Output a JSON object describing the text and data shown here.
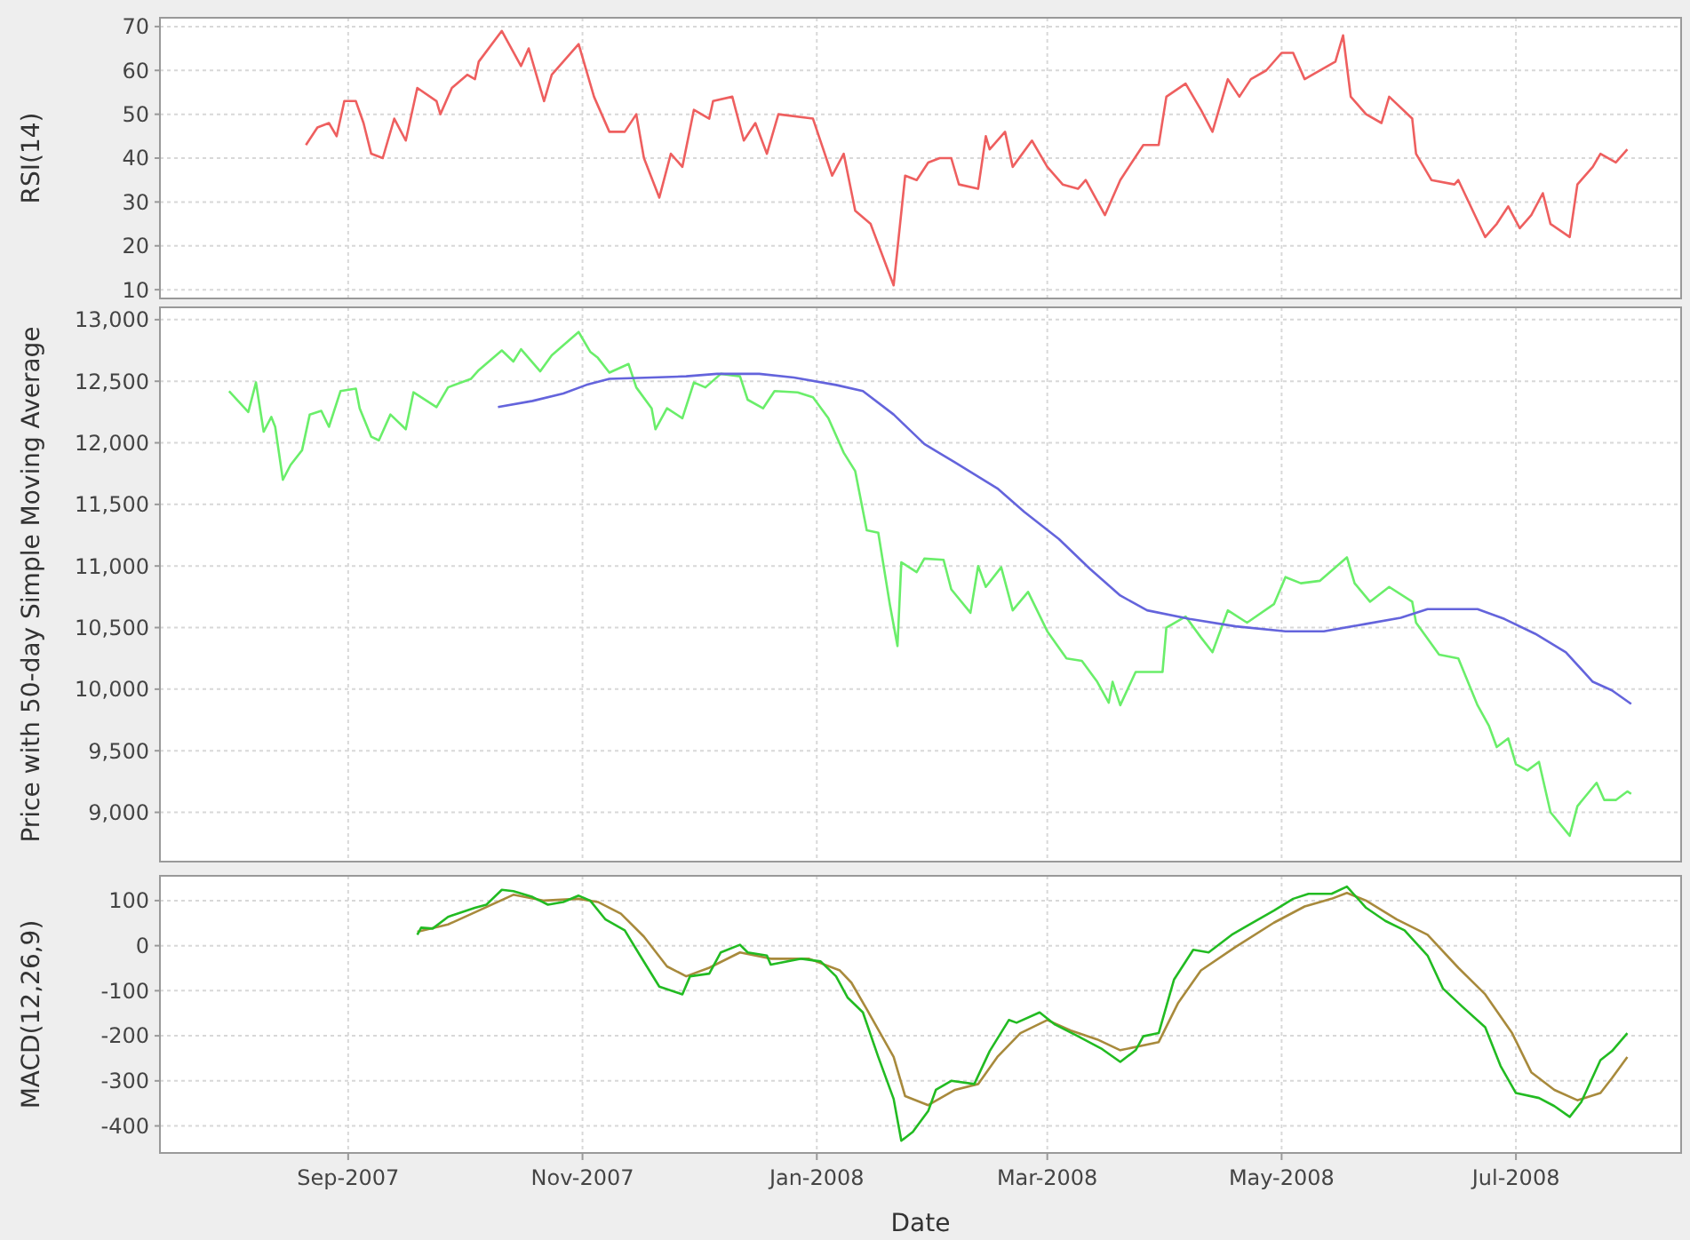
{
  "chart_data": [
    {
      "type": "line",
      "ylabel": "RSI(14)",
      "xlim": [
        "2007-07-14",
        "2008-08-13"
      ],
      "ylim": [
        8,
        72
      ],
      "yticks": [
        10,
        20,
        30,
        40,
        50,
        60,
        70
      ],
      "xticks": [
        {
          "value": "2007-09-01",
          "label": null
        },
        {
          "value": "2007-11-01",
          "label": null
        },
        {
          "value": "2008-01-01",
          "label": null
        },
        {
          "value": "2008-03-01",
          "label": null
        },
        {
          "value": "2008-05-01",
          "label": null
        },
        {
          "value": "2008-07-01",
          "label": null
        }
      ],
      "tick_labels": "y",
      "grid": true,
      "series": [
        {
          "color": "#ee5f5f",
          "x": [
            "2007-08-21",
            "2007-08-24",
            "2007-08-27",
            "2007-08-29",
            "2007-08-31",
            "2007-09-03",
            "2007-09-05",
            "2007-09-07",
            "2007-09-10",
            "2007-09-13",
            "2007-09-16",
            "2007-09-19",
            "2007-09-24",
            "2007-09-25",
            "2007-09-28",
            "2007-10-02",
            "2007-10-04",
            "2007-10-05",
            "2007-10-11",
            "2007-10-16",
            "2007-10-18",
            "2007-10-22",
            "2007-10-24",
            "2007-10-31",
            "2007-11-04",
            "2007-11-08",
            "2007-11-12",
            "2007-11-15",
            "2007-11-17",
            "2007-11-21",
            "2007-11-24",
            "2007-11-27",
            "2007-11-30",
            "2007-12-04",
            "2007-12-05",
            "2007-12-10",
            "2007-12-13",
            "2007-12-16",
            "2007-12-19",
            "2007-12-22",
            "2007-12-31",
            "2008-01-05",
            "2008-01-08",
            "2008-01-11",
            "2008-01-15",
            "2008-01-21",
            "2008-01-24",
            "2008-01-27",
            "2008-01-30",
            "2008-02-02",
            "2008-02-05",
            "2008-02-07",
            "2008-02-12",
            "2008-02-14",
            "2008-02-15",
            "2008-02-19",
            "2008-02-21",
            "2008-02-26",
            "2008-03-01",
            "2008-03-05",
            "2008-03-09",
            "2008-03-11",
            "2008-03-16",
            "2008-03-20",
            "2008-03-26",
            "2008-03-30",
            "2008-04-01",
            "2008-04-06",
            "2008-04-10",
            "2008-04-13",
            "2008-04-17",
            "2008-04-20",
            "2008-04-23",
            "2008-04-27",
            "2008-05-01",
            "2008-05-04",
            "2008-05-07",
            "2008-05-15",
            "2008-05-17",
            "2008-05-19",
            "2008-05-23",
            "2008-05-27",
            "2008-05-29",
            "2008-06-04",
            "2008-06-05",
            "2008-06-09",
            "2008-06-15",
            "2008-06-16",
            "2008-06-23",
            "2008-06-26",
            "2008-06-29",
            "2008-07-02",
            "2008-07-05",
            "2008-07-08",
            "2008-07-10",
            "2008-07-15",
            "2008-07-17",
            "2008-07-21",
            "2008-07-23",
            "2008-07-27",
            "2008-07-30"
          ],
          "values": [
            43,
            47,
            48,
            45,
            53,
            53,
            48,
            41,
            40,
            49,
            44,
            56,
            53,
            50,
            56,
            59,
            58,
            62,
            69,
            61,
            65,
            53,
            59,
            66,
            54,
            46,
            46,
            50,
            40,
            31,
            41,
            38,
            51,
            49,
            53,
            54,
            44,
            48,
            41,
            50,
            49,
            36,
            41,
            28,
            25,
            11,
            36,
            35,
            39,
            40,
            40,
            34,
            33,
            45,
            42,
            46,
            38,
            44,
            38,
            34,
            33,
            35,
            27,
            35,
            43,
            43,
            54,
            57,
            51,
            46,
            58,
            54,
            58,
            60,
            64,
            64,
            58,
            62,
            68,
            54,
            50,
            48,
            54,
            49,
            41,
            35,
            34,
            35,
            22,
            25,
            29,
            24,
            27,
            32,
            25,
            22,
            34,
            38,
            41,
            39,
            42
          ]
        }
      ]
    },
    {
      "type": "line",
      "ylabel": "Price with 50-day Simple Moving Average",
      "xlim": [
        "2007-07-14",
        "2008-08-13"
      ],
      "ylim": [
        8600,
        13100
      ],
      "yticks": [
        {
          "value": 9000,
          "label": "9,000"
        },
        {
          "value": 9500,
          "label": "9,500"
        },
        {
          "value": 10000,
          "label": "10,000"
        },
        {
          "value": 10500,
          "label": "10,500"
        },
        {
          "value": 11000,
          "label": "11,000"
        },
        {
          "value": 11500,
          "label": "11,500"
        },
        {
          "value": 12000,
          "label": "12,000"
        },
        {
          "value": 12500,
          "label": "12,500"
        },
        {
          "value": 13000,
          "label": "13,000"
        }
      ],
      "xticks": [
        {
          "value": "2007-09-01",
          "label": null
        },
        {
          "value": "2007-11-01",
          "label": null
        },
        {
          "value": "2008-01-01",
          "label": null
        },
        {
          "value": "2008-03-01",
          "label": null
        },
        {
          "value": "2008-05-01",
          "label": null
        },
        {
          "value": "2008-07-01",
          "label": null
        }
      ],
      "tick_labels": "y",
      "grid": true,
      "series": [
        {
          "color": "#6aee6a",
          "x": [
            "2007-08-01",
            "2007-08-06",
            "2007-08-08",
            "2007-08-10",
            "2007-08-12",
            "2007-08-13",
            "2007-08-15",
            "2007-08-17",
            "2007-08-20",
            "2007-08-22",
            "2007-08-25",
            "2007-08-27",
            "2007-08-30",
            "2007-09-03",
            "2007-09-04",
            "2007-09-07",
            "2007-09-09",
            "2007-09-12",
            "2007-09-16",
            "2007-09-18",
            "2007-09-24",
            "2007-09-27",
            "2007-10-03",
            "2007-10-05",
            "2007-10-11",
            "2007-10-14",
            "2007-10-16",
            "2007-10-21",
            "2007-10-24",
            "2007-10-31",
            "2007-11-03",
            "2007-11-05",
            "2007-11-08",
            "2007-11-13",
            "2007-11-15",
            "2007-11-19",
            "2007-11-20",
            "2007-11-23",
            "2007-11-27",
            "2007-11-30",
            "2007-12-03",
            "2007-12-07",
            "2007-12-12",
            "2007-12-14",
            "2007-12-18",
            "2007-12-21",
            "2007-12-27",
            "2007-12-31",
            "2008-01-04",
            "2008-01-08",
            "2008-01-11",
            "2008-01-14",
            "2008-01-17",
            "2008-01-20",
            "2008-01-22",
            "2008-01-23",
            "2008-01-27",
            "2008-01-29",
            "2008-02-03",
            "2008-02-05",
            "2008-02-10",
            "2008-02-12",
            "2008-02-14",
            "2008-02-18",
            "2008-02-21",
            "2008-02-25",
            "2008-03-01",
            "2008-03-06",
            "2008-03-10",
            "2008-03-14",
            "2008-03-17",
            "2008-03-18",
            "2008-03-20",
            "2008-03-24",
            "2008-03-31",
            "2008-04-01",
            "2008-04-06",
            "2008-04-10",
            "2008-04-13",
            "2008-04-17",
            "2008-04-22",
            "2008-04-29",
            "2008-05-02",
            "2008-05-06",
            "2008-05-11",
            "2008-05-18",
            "2008-05-20",
            "2008-05-24",
            "2008-05-29",
            "2008-06-04",
            "2008-06-05",
            "2008-06-11",
            "2008-06-16",
            "2008-06-21",
            "2008-06-24",
            "2008-06-26",
            "2008-06-29",
            "2008-07-01",
            "2008-07-04",
            "2008-07-07",
            "2008-07-10",
            "2008-07-15",
            "2008-07-17",
            "2008-07-22",
            "2008-07-24",
            "2008-07-27",
            "2008-07-30",
            "2008-07-31"
          ],
          "values": [
            12420,
            12250,
            12490,
            12090,
            12210,
            12130,
            11700,
            11820,
            11940,
            12230,
            12260,
            12130,
            12420,
            12440,
            12280,
            12050,
            12020,
            12230,
            12110,
            12410,
            12290,
            12450,
            12520,
            12590,
            12750,
            12660,
            12760,
            12580,
            12710,
            12900,
            12740,
            12690,
            12570,
            12640,
            12450,
            12280,
            12110,
            12280,
            12200,
            12490,
            12450,
            12560,
            12540,
            12350,
            12280,
            12420,
            12410,
            12370,
            12200,
            11920,
            11770,
            11290,
            11270,
            10690,
            10350,
            11030,
            10950,
            11060,
            11050,
            10810,
            10620,
            11000,
            10830,
            10990,
            10640,
            10790,
            10470,
            10250,
            10230,
            10060,
            9890,
            10060,
            9870,
            10140,
            10140,
            10500,
            10590,
            10420,
            10300,
            10640,
            10540,
            10690,
            10910,
            10860,
            10880,
            11070,
            10860,
            10710,
            10830,
            10710,
            10540,
            10280,
            10250,
            9870,
            9700,
            9530,
            9600,
            9390,
            9340,
            9410,
            9000,
            8810,
            9050,
            9240,
            9100,
            9100,
            9170,
            9150
          ]
        },
        {
          "color": "#6464dc",
          "x": [
            "2007-10-10",
            "2007-10-19",
            "2007-10-27",
            "2007-11-02",
            "2007-11-08",
            "2007-11-19",
            "2007-11-28",
            "2007-12-06",
            "2007-12-17",
            "2007-12-26",
            "2008-01-06",
            "2008-01-13",
            "2008-01-21",
            "2008-01-29",
            "2008-02-06",
            "2008-02-17",
            "2008-02-24",
            "2008-03-04",
            "2008-03-12",
            "2008-03-20",
            "2008-03-27",
            "2008-04-07",
            "2008-04-19",
            "2008-05-02",
            "2008-05-12",
            "2008-05-23",
            "2008-06-01",
            "2008-06-08",
            "2008-06-21",
            "2008-06-28",
            "2008-07-06",
            "2008-07-14",
            "2008-07-21",
            "2008-07-26",
            "2008-07-31"
          ],
          "values": [
            12290,
            12340,
            12400,
            12470,
            12520,
            12530,
            12540,
            12560,
            12560,
            12530,
            12470,
            12420,
            12230,
            11990,
            11840,
            11630,
            11440,
            11220,
            10980,
            10760,
            10640,
            10570,
            10510,
            10470,
            10470,
            10530,
            10580,
            10650,
            10650,
            10570,
            10450,
            10300,
            10060,
            9990,
            9880
          ]
        }
      ]
    },
    {
      "type": "line",
      "ylabel": "MACD(12,26,9)",
      "xlabel": "Date",
      "xlim": [
        "2007-07-14",
        "2008-08-13"
      ],
      "ylim": [
        -460,
        155
      ],
      "yticks": [
        -400,
        -300,
        -200,
        -100,
        0,
        100
      ],
      "xticks": [
        {
          "value": "2007-09-01",
          "label": "Sep-2007"
        },
        {
          "value": "2007-11-01",
          "label": "Nov-2007"
        },
        {
          "value": "2008-01-01",
          "label": "Jan-2008"
        },
        {
          "value": "2008-03-01",
          "label": "Mar-2008"
        },
        {
          "value": "2008-05-01",
          "label": "May-2008"
        },
        {
          "value": "2008-07-01",
          "label": "Jul-2008"
        }
      ],
      "grid": true,
      "series": [
        {
          "color": "#a88a3c",
          "x": [
            "2007-09-19",
            "2007-09-27",
            "2007-10-05",
            "2007-10-14",
            "2007-10-22",
            "2007-10-31",
            "2007-11-05",
            "2007-11-11",
            "2007-11-17",
            "2007-11-23",
            "2007-11-28",
            "2007-12-04",
            "2007-12-12",
            "2007-12-20",
            "2007-12-30",
            "2008-01-07",
            "2008-01-10",
            "2008-01-14",
            "2008-01-21",
            "2008-01-24",
            "2008-01-30",
            "2008-02-06",
            "2008-02-12",
            "2008-02-17",
            "2008-02-23",
            "2008-03-01",
            "2008-03-07",
            "2008-03-14",
            "2008-03-20",
            "2008-03-30",
            "2008-04-04",
            "2008-04-10",
            "2008-04-19",
            "2008-04-29",
            "2008-05-07",
            "2008-05-14",
            "2008-05-18",
            "2008-05-23",
            "2008-05-31",
            "2008-06-08",
            "2008-06-16",
            "2008-06-23",
            "2008-06-30",
            "2008-07-05",
            "2008-07-11",
            "2008-07-17",
            "2008-07-23",
            "2008-07-26",
            "2008-07-30"
          ],
          "values": [
            31,
            47,
            78,
            113,
            100,
            104,
            97,
            71,
            20,
            -46,
            -68,
            -49,
            -15,
            -29,
            -29,
            -55,
            -82,
            -141,
            -247,
            -334,
            -354,
            -320,
            -307,
            -247,
            -194,
            -165,
            -188,
            -208,
            -232,
            -214,
            -128,
            -55,
            -3,
            51,
            87,
            104,
            117,
            100,
            58,
            24,
            -49,
            -108,
            -194,
            -281,
            -320,
            -343,
            -327,
            -294,
            -247
          ]
        },
        {
          "color": "#22bb22",
          "x": [
            "2007-09-19",
            "2007-09-20",
            "2007-09-23",
            "2007-09-27",
            "2007-10-04",
            "2007-10-07",
            "2007-10-11",
            "2007-10-14",
            "2007-10-19",
            "2007-10-23",
            "2007-10-27",
            "2007-10-31",
            "2007-11-03",
            "2007-11-07",
            "2007-11-12",
            "2007-11-16",
            "2007-11-21",
            "2007-11-27",
            "2007-11-29",
            "2007-12-04",
            "2007-12-07",
            "2007-12-12",
            "2007-12-14",
            "2007-12-19",
            "2007-12-20",
            "2007-12-28",
            "2008-01-02",
            "2008-01-06",
            "2008-01-09",
            "2008-01-13",
            "2008-01-17",
            "2008-01-21",
            "2008-01-23",
            "2008-01-26",
            "2008-01-30",
            "2008-02-01",
            "2008-02-05",
            "2008-02-11",
            "2008-02-15",
            "2008-02-20",
            "2008-02-22",
            "2008-02-28",
            "2008-03-03",
            "2008-03-09",
            "2008-03-15",
            "2008-03-20",
            "2008-03-24",
            "2008-03-26",
            "2008-03-30",
            "2008-04-03",
            "2008-04-08",
            "2008-04-12",
            "2008-04-18",
            "2008-04-22",
            "2008-04-29",
            "2008-05-04",
            "2008-05-08",
            "2008-05-14",
            "2008-05-18",
            "2008-05-23",
            "2008-05-28",
            "2008-06-02",
            "2008-06-08",
            "2008-06-12",
            "2008-06-17",
            "2008-06-23",
            "2008-06-27",
            "2008-07-01",
            "2008-07-07",
            "2008-07-11",
            "2008-07-15",
            "2008-07-18",
            "2008-07-23",
            "2008-07-26",
            "2008-07-30"
          ],
          "values": [
            24,
            40,
            38,
            64,
            84,
            91,
            124,
            121,
            108,
            91,
            97,
            111,
            100,
            58,
            34,
            -22,
            -91,
            -108,
            -68,
            -62,
            -15,
            2,
            -15,
            -22,
            -42,
            -29,
            -35,
            -68,
            -115,
            -148,
            -247,
            -340,
            -433,
            -413,
            -367,
            -320,
            -300,
            -307,
            -234,
            -165,
            -171,
            -148,
            -175,
            -201,
            -228,
            -258,
            -232,
            -201,
            -194,
            -75,
            -9,
            -15,
            24,
            44,
            78,
            104,
            115,
            115,
            131,
            84,
            55,
            34,
            -22,
            -95,
            -135,
            -181,
            -267,
            -327,
            -338,
            -356,
            -380,
            -347,
            -254,
            -234,
            -194
          ]
        }
      ]
    }
  ]
}
